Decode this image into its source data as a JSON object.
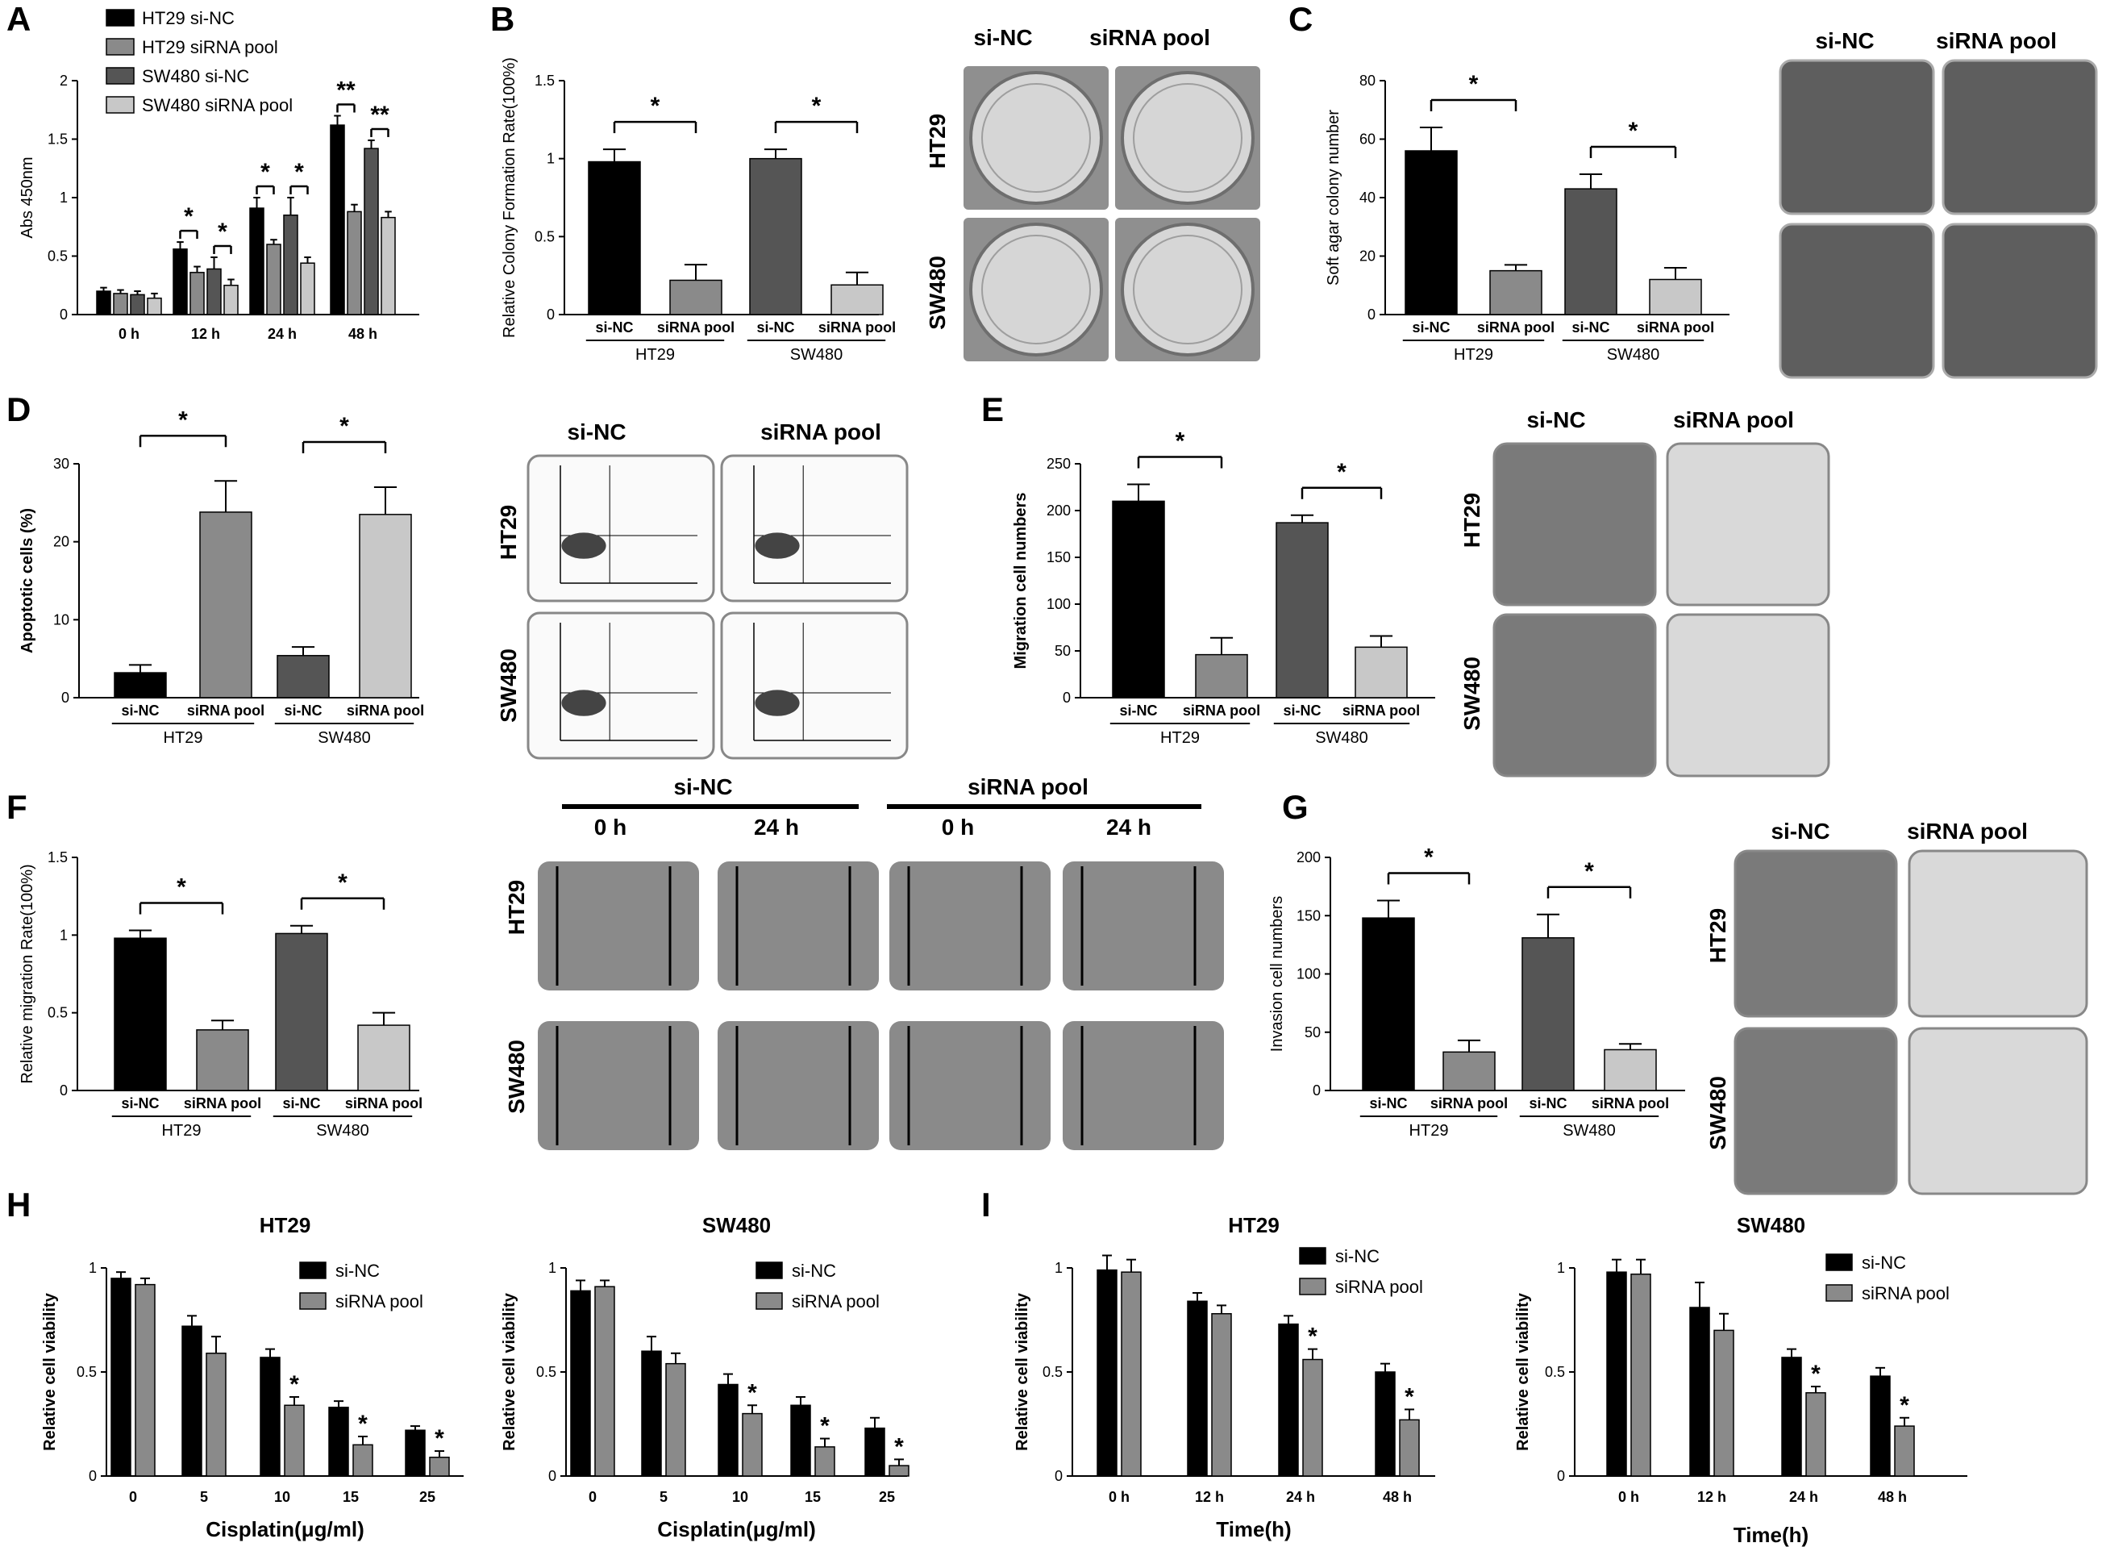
{
  "figure": {
    "panel_letters": [
      "A",
      "B",
      "C",
      "D",
      "E",
      "F",
      "G",
      "H",
      "I"
    ],
    "siNC": "si-NC",
    "siRNA": "siRNA pool",
    "HT29": "HT29",
    "SW480": "SW480",
    "t0": "0 h",
    "t24": "24 h"
  },
  "colors": {
    "black": "#000000",
    "gray_dark": "#555555",
    "gray_mid": "#8a8a8a",
    "gray_light": "#c8c8c8",
    "plate": "#b9b9b9",
    "micro": "#5a5a5a"
  },
  "chart_data": [
    {
      "id": "A",
      "type": "bar",
      "ylabel": "Abs 450nm",
      "ylim": [
        0,
        2.0
      ],
      "yticks": [
        0,
        0.5,
        1.0,
        1.5,
        2.0
      ],
      "categories": [
        "0 h",
        "12 h",
        "24 h",
        "48 h"
      ],
      "series": [
        {
          "name": "HT29 si-NC",
          "values": [
            0.2,
            0.56,
            0.91,
            1.62
          ],
          "err": [
            0.03,
            0.06,
            0.09,
            0.08
          ]
        },
        {
          "name": "HT29 siRNA pool",
          "values": [
            0.18,
            0.36,
            0.6,
            0.88
          ],
          "err": [
            0.03,
            0.05,
            0.04,
            0.06
          ]
        },
        {
          "name": "SW480 si-NC",
          "values": [
            0.17,
            0.39,
            0.85,
            1.42
          ],
          "err": [
            0.03,
            0.1,
            0.15,
            0.07
          ]
        },
        {
          "name": "SW480 siRNA pool",
          "values": [
            0.14,
            0.25,
            0.44,
            0.83
          ],
          "err": [
            0.04,
            0.05,
            0.05,
            0.05
          ]
        }
      ],
      "sig": [
        "*",
        "*",
        "*",
        "*",
        "**",
        "**"
      ]
    },
    {
      "id": "B",
      "type": "bar",
      "ylabel": "Relative Colony Formation Rate(100%)",
      "ylim": [
        0,
        1.5
      ],
      "yticks": [
        0,
        0.5,
        1.0,
        1.5
      ],
      "categories": [
        "si-NC",
        "siRNA pool",
        "si-NC",
        "siRNA pool"
      ],
      "groups": [
        "HT29",
        "SW480"
      ],
      "values": [
        0.98,
        0.22,
        1.0,
        0.19
      ],
      "err": [
        0.08,
        0.1,
        0.06,
        0.08
      ],
      "sig": [
        "*",
        "*"
      ]
    },
    {
      "id": "C",
      "type": "bar",
      "ylabel": "Soft agar colony number",
      "ylim": [
        0,
        80
      ],
      "yticks": [
        0,
        20,
        40,
        60,
        80
      ],
      "categories": [
        "si-NC",
        "siRNA pool",
        "si-NC",
        "siRNA pool"
      ],
      "groups": [
        "HT29",
        "SW480"
      ],
      "values": [
        56,
        15,
        43,
        12
      ],
      "err": [
        8,
        2,
        5,
        4
      ],
      "sig": [
        "*",
        "*"
      ]
    },
    {
      "id": "D",
      "type": "bar",
      "ylabel": "Apoptotic cells (%)",
      "ylim": [
        0,
        30
      ],
      "yticks": [
        0,
        10,
        20,
        30
      ],
      "categories": [
        "si-NC",
        "siRNA pool",
        "si-NC",
        "siRNA pool"
      ],
      "groups": [
        "HT29",
        "SW480"
      ],
      "values": [
        3.2,
        23.8,
        5.4,
        23.5
      ],
      "err": [
        1.0,
        4.0,
        1.1,
        3.5
      ],
      "sig": [
        "*",
        "*"
      ]
    },
    {
      "id": "E",
      "type": "bar",
      "ylabel": "Migration cell numbers",
      "ylim": [
        0,
        250
      ],
      "yticks": [
        0,
        50,
        100,
        150,
        200,
        250
      ],
      "categories": [
        "si-NC",
        "siRNA pool",
        "si-NC",
        "siRNA pool"
      ],
      "groups": [
        "HT29",
        "SW480"
      ],
      "values": [
        210,
        46,
        187,
        54
      ],
      "err": [
        18,
        18,
        8,
        12
      ],
      "sig": [
        "*",
        "*"
      ]
    },
    {
      "id": "F",
      "type": "bar",
      "ylabel": "Relative migration Rate(100%)",
      "ylim": [
        0,
        1.5
      ],
      "yticks": [
        0,
        0.5,
        1.0,
        1.5
      ],
      "categories": [
        "si-NC",
        "siRNA pool",
        "si-NC",
        "siRNA pool"
      ],
      "groups": [
        "HT29",
        "SW480"
      ],
      "values": [
        0.98,
        0.39,
        1.01,
        0.42
      ],
      "err": [
        0.05,
        0.06,
        0.05,
        0.08
      ],
      "sig": [
        "*",
        "*"
      ]
    },
    {
      "id": "G",
      "type": "bar",
      "ylabel": "Invasion cell numbers",
      "ylim": [
        0,
        200
      ],
      "yticks": [
        0,
        50,
        100,
        150,
        200
      ],
      "categories": [
        "si-NC",
        "siRNA pool",
        "si-NC",
        "siRNA pool"
      ],
      "groups": [
        "HT29",
        "SW480"
      ],
      "values": [
        148,
        33,
        131,
        35
      ],
      "err": [
        15,
        10,
        20,
        5
      ],
      "sig": [
        "*",
        "*"
      ]
    },
    {
      "id": "H1",
      "type": "bar",
      "title": "HT29",
      "xlabel": "Cisplatin(μg/ml)",
      "ylabel": "Relative cell viability",
      "ylim": [
        0,
        1.0
      ],
      "yticks": [
        0,
        0.5,
        1.0
      ],
      "categories": [
        "0",
        "5",
        "10",
        "15",
        "25"
      ],
      "series": [
        {
          "name": "si-NC",
          "values": [
            0.95,
            0.72,
            0.57,
            0.33,
            0.22
          ],
          "err": [
            0.03,
            0.05,
            0.04,
            0.03,
            0.02
          ]
        },
        {
          "name": "siRNA pool",
          "values": [
            0.92,
            0.59,
            0.34,
            0.15,
            0.09
          ],
          "err": [
            0.03,
            0.08,
            0.04,
            0.04,
            0.03
          ]
        }
      ],
      "sig": [
        "",
        "",
        "*",
        "*",
        "*"
      ]
    },
    {
      "id": "H2",
      "type": "bar",
      "title": "SW480",
      "xlabel": "Cisplatin(μg/ml)",
      "ylabel": "Relative cell viability",
      "ylim": [
        0,
        1.0
      ],
      "yticks": [
        0,
        0.5,
        1.0
      ],
      "categories": [
        "0",
        "5",
        "10",
        "15",
        "25"
      ],
      "series": [
        {
          "name": "si-NC",
          "values": [
            0.89,
            0.6,
            0.44,
            0.34,
            0.23
          ],
          "err": [
            0.05,
            0.07,
            0.05,
            0.04,
            0.05
          ]
        },
        {
          "name": "siRNA pool",
          "values": [
            0.91,
            0.54,
            0.3,
            0.14,
            0.05
          ],
          "err": [
            0.03,
            0.05,
            0.04,
            0.04,
            0.03
          ]
        }
      ],
      "sig": [
        "",
        "",
        "*",
        "*",
        "*"
      ]
    },
    {
      "id": "I1",
      "type": "bar",
      "title": "HT29",
      "xlabel": "Time(h)",
      "ylabel": "Relative cell viability",
      "ylim": [
        0,
        1.0
      ],
      "yticks": [
        0,
        0.5,
        1.0
      ],
      "categories": [
        "0 h",
        "12 h",
        "24 h",
        "48 h"
      ],
      "series": [
        {
          "name": "si-NC",
          "values": [
            0.99,
            0.84,
            0.73,
            0.5
          ],
          "err": [
            0.07,
            0.04,
            0.04,
            0.04
          ]
        },
        {
          "name": "siRNA pool",
          "values": [
            0.98,
            0.78,
            0.56,
            0.27
          ],
          "err": [
            0.06,
            0.04,
            0.05,
            0.05
          ]
        }
      ],
      "sig": [
        "",
        "",
        "*",
        "*"
      ]
    },
    {
      "id": "I2",
      "type": "bar",
      "title": "SW480",
      "xlabel": "Time(h)",
      "ylabel": "Relative cell viability",
      "ylim": [
        0,
        1.0
      ],
      "yticks": [
        0,
        0.5,
        1.0
      ],
      "categories": [
        "0 h",
        "12 h",
        "24 h",
        "48 h"
      ],
      "series": [
        {
          "name": "si-NC",
          "values": [
            0.98,
            0.81,
            0.57,
            0.48
          ],
          "err": [
            0.06,
            0.12,
            0.04,
            0.04
          ]
        },
        {
          "name": "siRNA pool",
          "values": [
            0.97,
            0.7,
            0.4,
            0.24
          ],
          "err": [
            0.07,
            0.08,
            0.03,
            0.04
          ]
        }
      ],
      "sig": [
        "",
        "",
        "*",
        "*"
      ]
    }
  ]
}
